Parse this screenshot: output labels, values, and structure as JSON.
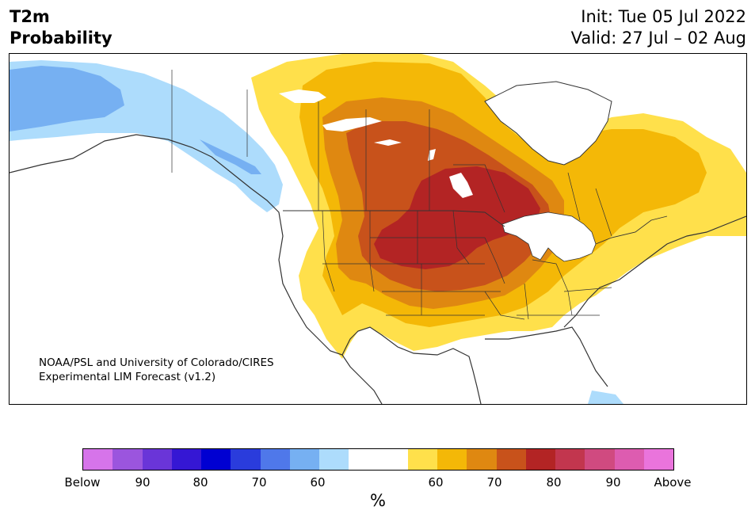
{
  "header": {
    "title_line1": "T2m",
    "title_line2": "Probability",
    "init": "Init: Tue 05 Jul 2022",
    "valid": "Valid: 27 Jul – 02 Aug"
  },
  "credit": {
    "line1": "NOAA/PSL and University of Colorado/CIRES",
    "line2": "Experimental LIM Forecast (v1.2)"
  },
  "colorbar": {
    "colors": [
      "#d674ea",
      "#9b55de",
      "#6a35d8",
      "#3517d4",
      "#0000d2",
      "#2a3cdc",
      "#4f78ea",
      "#76b0f2",
      "#addcfc",
      "#ffffff",
      "#ffe04b",
      "#f4b807",
      "#df8811",
      "#c8521b",
      "#b32424",
      "#c2364e",
      "#d04a80",
      "#dd5cb0",
      "#ea74dc"
    ],
    "tick_labels": [
      "Below",
      "90",
      "80",
      "70",
      "60",
      "60",
      "70",
      "80",
      "90",
      "Above"
    ],
    "unit": "%"
  },
  "map_colors": {
    "p50": "#ffe04b",
    "p60": "#f4b807",
    "p70": "#df8811",
    "p75": "#c8521b",
    "p80": "#b32424",
    "cold60": "#addcfc",
    "cold70": "#76b0f2",
    "lines": "#333333"
  }
}
